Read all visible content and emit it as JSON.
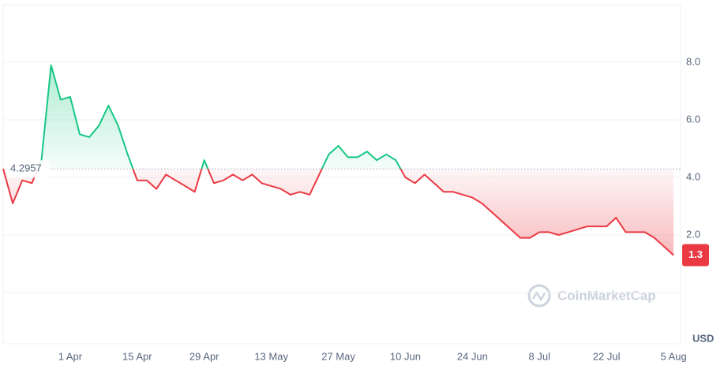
{
  "chart_data": {
    "type": "line",
    "x": [
      "18 Mar",
      "20 Mar",
      "22 Mar",
      "24 Mar",
      "26 Mar",
      "28 Mar",
      "30 Mar",
      "1 Apr",
      "3 Apr",
      "5 Apr",
      "7 Apr",
      "9 Apr",
      "11 Apr",
      "13 Apr",
      "15 Apr",
      "17 Apr",
      "19 Apr",
      "21 Apr",
      "23 Apr",
      "25 Apr",
      "27 Apr",
      "29 Apr",
      "1 May",
      "3 May",
      "5 May",
      "7 May",
      "9 May",
      "11 May",
      "13 May",
      "15 May",
      "17 May",
      "19 May",
      "21 May",
      "23 May",
      "25 May",
      "27 May",
      "29 May",
      "31 May",
      "2 Jun",
      "4 Jun",
      "6 Jun",
      "8 Jun",
      "10 Jun",
      "12 Jun",
      "14 Jun",
      "16 Jun",
      "18 Jun",
      "20 Jun",
      "22 Jun",
      "24 Jun",
      "26 Jun",
      "28 Jun",
      "30 Jun",
      "2 Jul",
      "4 Jul",
      "6 Jul",
      "8 Jul",
      "10 Jul",
      "12 Jul",
      "14 Jul",
      "16 Jul",
      "18 Jul",
      "20 Jul",
      "22 Jul",
      "24 Jul",
      "26 Jul",
      "28 Jul",
      "30 Jul",
      "1 Aug",
      "3 Aug",
      "5 Aug"
    ],
    "values": [
      4.3,
      3.1,
      3.9,
      3.8,
      4.6,
      7.9,
      6.7,
      6.8,
      5.5,
      5.4,
      5.8,
      6.5,
      5.8,
      4.8,
      3.9,
      3.9,
      3.6,
      4.1,
      3.9,
      3.7,
      3.5,
      4.6,
      3.8,
      3.9,
      4.1,
      3.9,
      4.1,
      3.8,
      3.7,
      3.6,
      3.4,
      3.5,
      3.4,
      4.1,
      4.8,
      5.1,
      4.7,
      4.7,
      4.9,
      4.6,
      4.8,
      4.6,
      4.0,
      3.8,
      4.1,
      3.8,
      3.5,
      3.5,
      3.4,
      3.3,
      3.1,
      2.8,
      2.5,
      2.2,
      1.9,
      1.9,
      2.1,
      2.1,
      2.0,
      2.1,
      2.2,
      2.3,
      2.3,
      2.3,
      2.6,
      2.1,
      2.1,
      2.1,
      1.9,
      1.6,
      1.3
    ],
    "baseline": 4.2957,
    "current_price": 1.3,
    "up_color": "#16c784",
    "down_color": "#ea3943",
    "ylim": [
      0,
      10
    ],
    "yticks": [
      {
        "value": 2,
        "label": "2.0"
      },
      {
        "value": 4,
        "label": "4.0"
      },
      {
        "value": 6,
        "label": "6.0"
      },
      {
        "value": 8,
        "label": "8.0"
      }
    ],
    "xticks": [
      "1 Apr",
      "15 Apr",
      "29 Apr",
      "13 May",
      "27 May",
      "10 Jun",
      "24 Jun",
      "8 Jul",
      "22 Jul",
      "5 Aug"
    ],
    "currency": "USD",
    "watermark": "CoinMarketCap",
    "grid": true
  }
}
